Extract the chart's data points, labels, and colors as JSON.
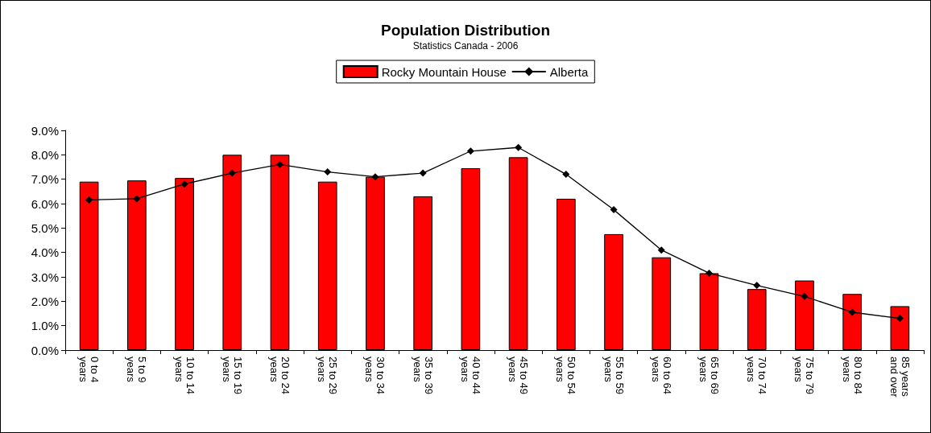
{
  "chart_data": {
    "type": "bar",
    "title": "Population Distribution",
    "subtitle": "Statistics Canada - 2006",
    "categories": [
      "0 to 4 years",
      "5 to 9 years",
      "10 to 14 years",
      "15 to 19 years",
      "20 to 24 years",
      "25 to 29 years",
      "30 to 34 years",
      "35 to 39 years",
      "40 to 44 years",
      "45 to 49 years",
      "50 to 54 years",
      "55 to 59 years",
      "60 to 64 years",
      "65 to 69 years",
      "70 to 74 years",
      "75 to 79 years",
      "80 to 84 years",
      "85 years and over"
    ],
    "series": [
      {
        "name": "Rocky Mountain House",
        "color": "#ff0000",
        "values": [
          6.9,
          6.95,
          7.05,
          8.0,
          8.0,
          6.9,
          7.1,
          6.3,
          7.45,
          7.9,
          6.2,
          4.75,
          3.8,
          3.15,
          2.5,
          2.85,
          2.3,
          1.8
        ]
      },
      {
        "name": "Alberta",
        "type": "line",
        "color": "#000000",
        "marker": "diamond",
        "values": [
          6.15,
          6.2,
          6.8,
          7.25,
          7.6,
          7.3,
          7.1,
          7.25,
          8.15,
          8.3,
          7.2,
          5.75,
          4.1,
          3.15,
          2.65,
          2.2,
          1.55,
          1.3
        ]
      }
    ],
    "ylim": [
      0,
      9
    ],
    "yticks": [
      {
        "value": 0,
        "label": "0.0%"
      },
      {
        "value": 1,
        "label": "1.0%"
      },
      {
        "value": 2,
        "label": "2.0%"
      },
      {
        "value": 3,
        "label": "3.0%"
      },
      {
        "value": 4,
        "label": "4.0%"
      },
      {
        "value": 5,
        "label": "5.0%"
      },
      {
        "value": 6,
        "label": "6.0%"
      },
      {
        "value": 7,
        "label": "7.0%"
      },
      {
        "value": 8,
        "label": "8.0%"
      },
      {
        "value": 9,
        "label": "9.0%"
      }
    ],
    "grid": false,
    "legend": "top"
  }
}
